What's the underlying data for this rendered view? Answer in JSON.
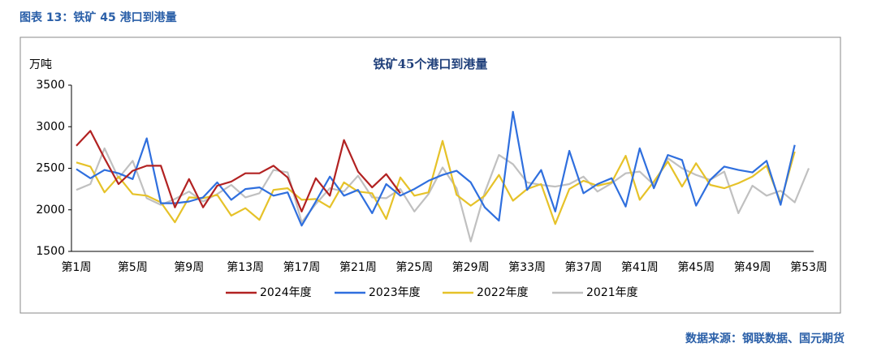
{
  "chart_data": {
    "type": "line",
    "figure_label": "图表 13：铁矿 45 港口到港量",
    "title": "铁矿45个港口到港量",
    "y_label": "万吨",
    "source": "数据来源：钢联数据、国元期货",
    "categories": [
      "第1周",
      null,
      null,
      null,
      "第5周",
      null,
      null,
      null,
      "第9周",
      null,
      null,
      null,
      "第13周",
      null,
      null,
      null,
      "第17周",
      null,
      null,
      null,
      "第21周",
      null,
      null,
      null,
      "第25周",
      null,
      null,
      null,
      "第29周",
      null,
      null,
      null,
      "第33周",
      null,
      null,
      null,
      "第37周",
      null,
      null,
      null,
      "第41周",
      null,
      null,
      null,
      "第45周",
      null,
      null,
      null,
      "第49周",
      null,
      null,
      null,
      "第53周"
    ],
    "ylim": [
      1500,
      3500
    ],
    "yticks": [
      1500,
      2000,
      2500,
      3000,
      3500
    ],
    "grid": false,
    "legend": "bottom",
    "series": [
      {
        "name": "2024年度",
        "color": "#b22222",
        "values": [
          2770,
          2950,
          2620,
          2310,
          2470,
          2530,
          2530,
          2030,
          2370,
          2030,
          2290,
          2340,
          2440,
          2440,
          2530,
          2390,
          1980,
          2380,
          2170,
          2840,
          2460,
          2270,
          2430,
          2200,
          null,
          null,
          null,
          null,
          null,
          null,
          null,
          null,
          null,
          null,
          null,
          null,
          null,
          null,
          null,
          null,
          null,
          null,
          null,
          null,
          null,
          null,
          null,
          null,
          null,
          null,
          null,
          null,
          null
        ]
      },
      {
        "name": "2023年度",
        "color": "#2f6fde",
        "values": [
          2490,
          2380,
          2480,
          2440,
          2370,
          2860,
          2080,
          2080,
          2100,
          2150,
          2330,
          2120,
          2250,
          2270,
          2170,
          2210,
          1810,
          2100,
          2400,
          2170,
          2240,
          1960,
          2310,
          2170,
          2250,
          2350,
          2420,
          2470,
          2330,
          2030,
          1870,
          3180,
          2240,
          2480,
          1980,
          2710,
          2200,
          2310,
          2380,
          2040,
          2740,
          2260,
          2660,
          2600,
          2050,
          2360,
          2520,
          2480,
          2450,
          2590,
          2060,
          2780,
          null
        ]
      },
      {
        "name": "2022年度",
        "color": "#e6c229",
        "values": [
          2570,
          2520,
          2210,
          2400,
          2190,
          2170,
          2090,
          1850,
          2150,
          2140,
          2180,
          1930,
          2020,
          1880,
          2240,
          2260,
          2120,
          2130,
          2030,
          2330,
          2220,
          2200,
          1890,
          2390,
          2170,
          2210,
          2830,
          2180,
          2050,
          2170,
          2420,
          2110,
          2250,
          2310,
          1830,
          2250,
          2350,
          2290,
          2330,
          2650,
          2120,
          2340,
          2580,
          2280,
          2560,
          2300,
          2260,
          2320,
          2400,
          2530,
          2090,
          2700,
          null
        ]
      },
      {
        "name": "2021年度",
        "color": "#c0c0c0",
        "values": [
          2240,
          2310,
          2740,
          2380,
          2590,
          2140,
          2060,
          2130,
          2220,
          2100,
          2190,
          2300,
          2150,
          2200,
          2480,
          2450,
          1850,
          2070,
          2260,
          2220,
          2410,
          2150,
          2140,
          2250,
          1980,
          2190,
          2510,
          2260,
          1620,
          2210,
          2660,
          2550,
          2330,
          2300,
          2280,
          2310,
          2400,
          2220,
          2320,
          2440,
          2460,
          2300,
          2620,
          2500,
          2420,
          2360,
          2460,
          1960,
          2290,
          2170,
          2230,
          2090,
          2500
        ]
      }
    ]
  }
}
